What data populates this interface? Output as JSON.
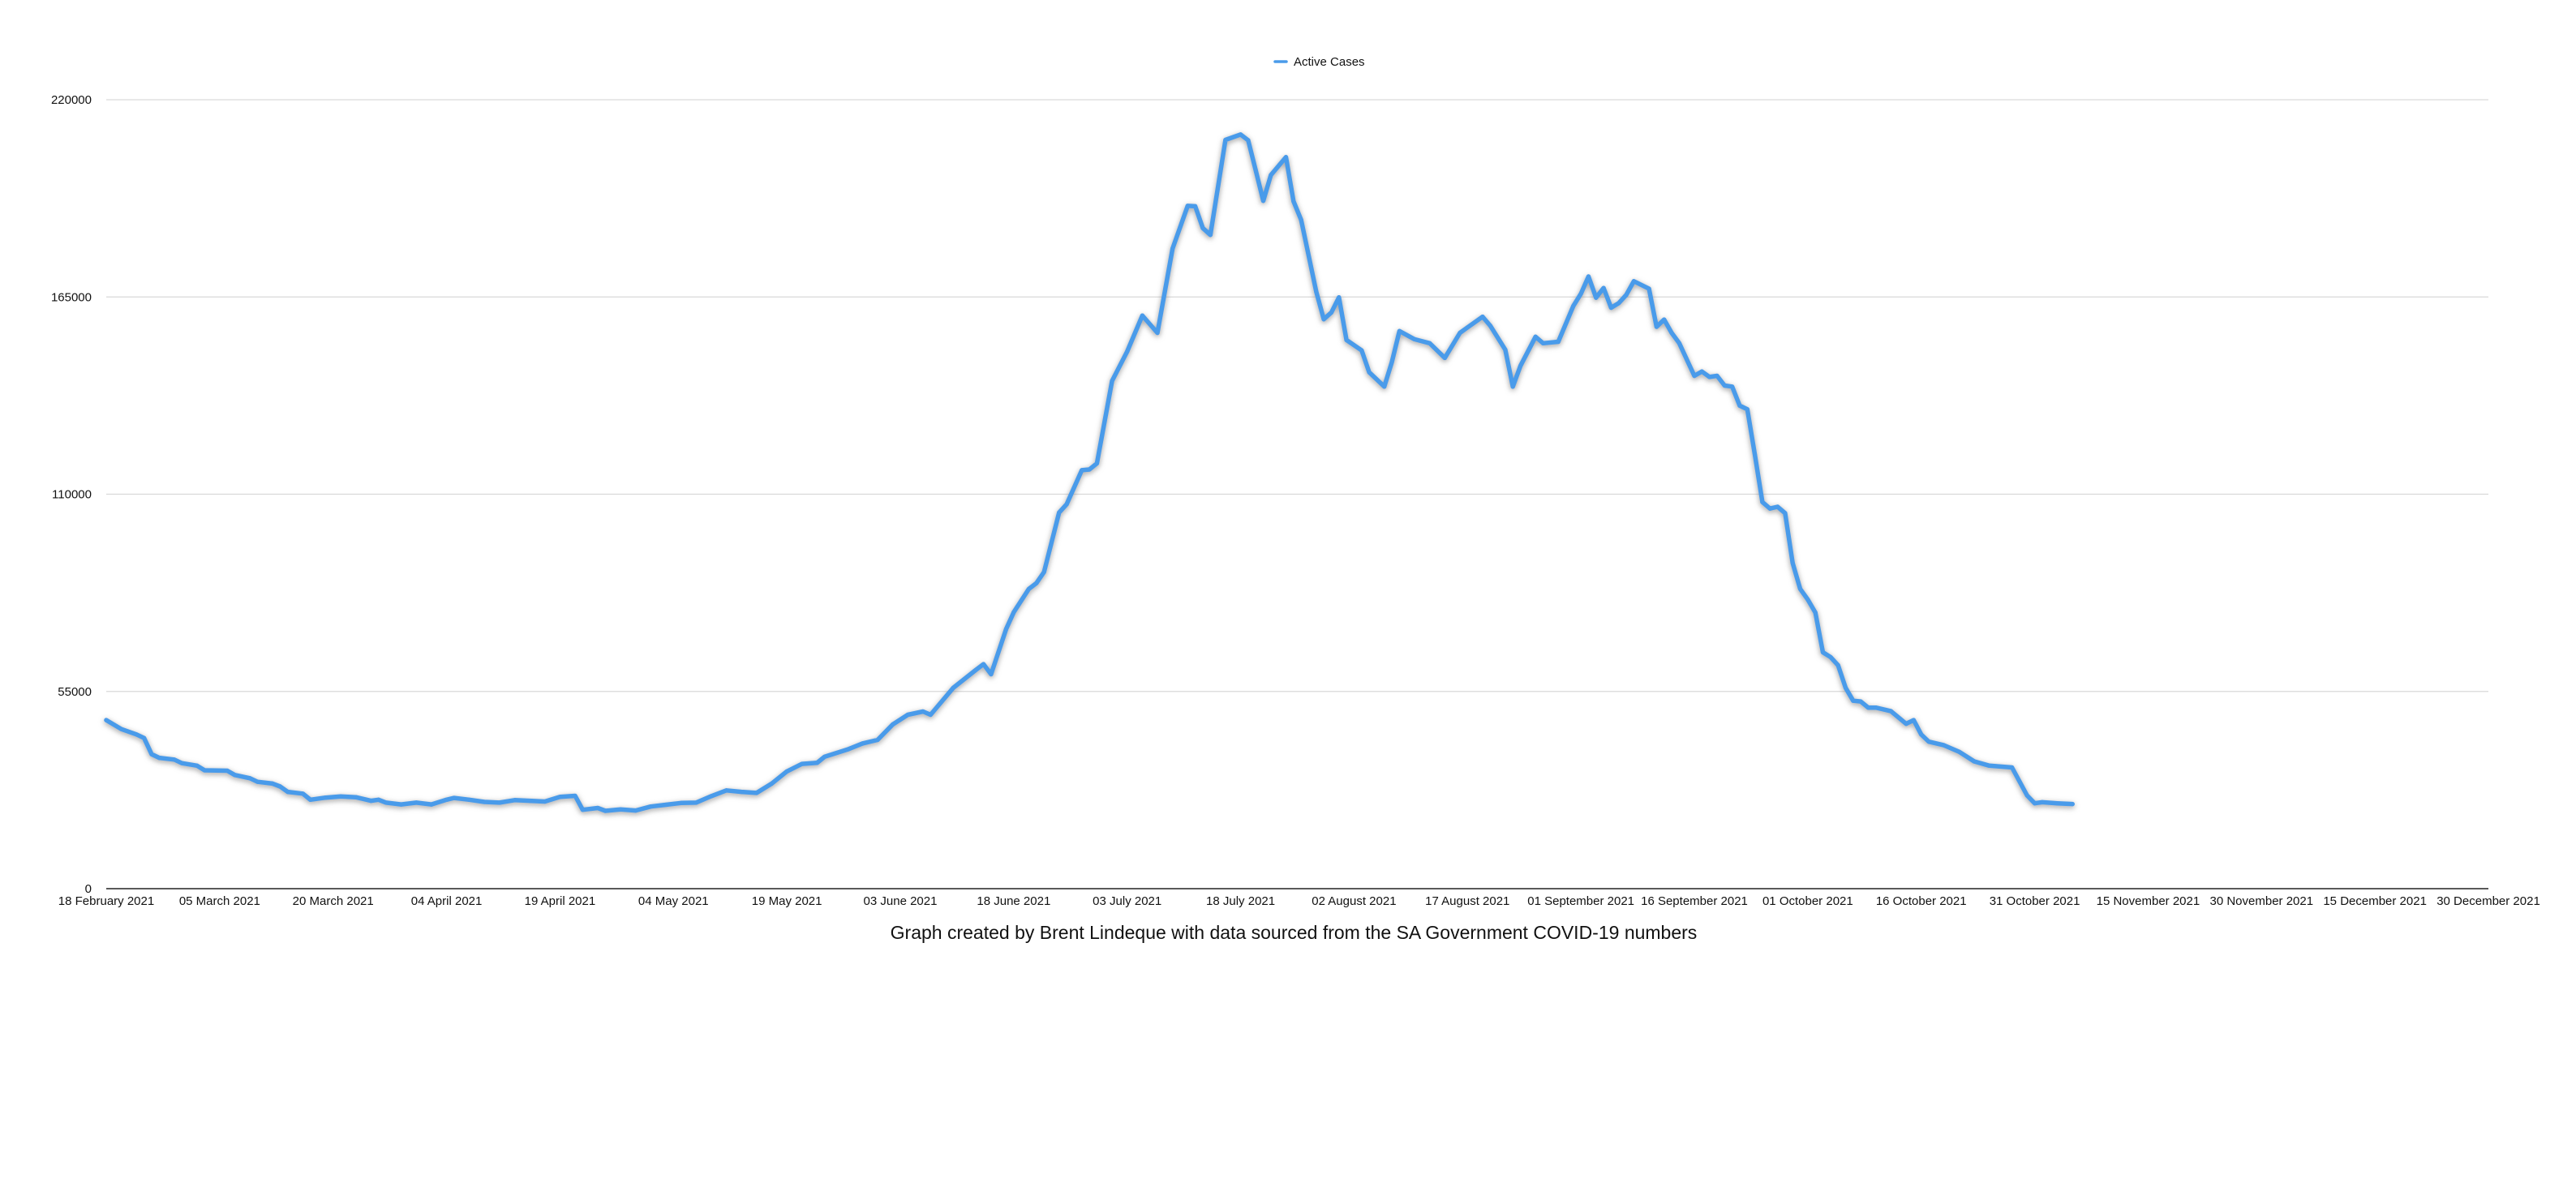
{
  "legend": {
    "label": "Active Cases",
    "placement": "top-center"
  },
  "caption": "Graph created by Brent Lindeque with data sourced from the SA Government COVID-19 numbers",
  "colors": {
    "series": "#4A9BEA",
    "shadow": "#9a9a9a",
    "grid": "#d9d9d9",
    "axis": "#222222"
  },
  "chart_data": {
    "type": "line",
    "title": "",
    "xlabel": "",
    "ylabel": "",
    "grid": true,
    "xlim": [
      "2021-02-18",
      "2021-12-30"
    ],
    "ylim": [
      0,
      220000
    ],
    "y_ticks": [
      0,
      55000,
      110000,
      165000,
      220000
    ],
    "x_ticks": [
      {
        "date": "2021-02-18",
        "label": "18 February 2021"
      },
      {
        "date": "2021-03-05",
        "label": "05 March 2021"
      },
      {
        "date": "2021-03-20",
        "label": "20 March 2021"
      },
      {
        "date": "2021-04-04",
        "label": "04 April 2021"
      },
      {
        "date": "2021-04-19",
        "label": "19 April 2021"
      },
      {
        "date": "2021-05-04",
        "label": "04 May 2021"
      },
      {
        "date": "2021-05-19",
        "label": "19 May 2021"
      },
      {
        "date": "2021-06-03",
        "label": "03 June 2021"
      },
      {
        "date": "2021-06-18",
        "label": "18 June 2021"
      },
      {
        "date": "2021-07-03",
        "label": "03 July 2021"
      },
      {
        "date": "2021-07-18",
        "label": "18 July 2021"
      },
      {
        "date": "2021-08-02",
        "label": "02 August 2021"
      },
      {
        "date": "2021-08-17",
        "label": "17 August 2021"
      },
      {
        "date": "2021-09-01",
        "label": "01 September 2021"
      },
      {
        "date": "2021-09-16",
        "label": "16 September 2021"
      },
      {
        "date": "2021-10-01",
        "label": "01 October 2021"
      },
      {
        "date": "2021-10-16",
        "label": "16 October 2021"
      },
      {
        "date": "2021-10-31",
        "label": "31 October 2021"
      },
      {
        "date": "2021-11-15",
        "label": "15 November 2021"
      },
      {
        "date": "2021-11-30",
        "label": "30 November 2021"
      },
      {
        "date": "2021-12-15",
        "label": "15 December 2021"
      },
      {
        "date": "2021-12-30",
        "label": "30 December 2021"
      }
    ],
    "series": [
      {
        "name": "Active Cases",
        "points": [
          [
            "2021-02-18",
            47000
          ],
          [
            "2021-02-20",
            44500
          ],
          [
            "2021-02-22",
            43000
          ],
          [
            "2021-02-23",
            42000
          ],
          [
            "2021-02-24",
            37500
          ],
          [
            "2021-02-25",
            36500
          ],
          [
            "2021-02-27",
            36000
          ],
          [
            "2021-02-28",
            35000
          ],
          [
            "2021-03-02",
            34300
          ],
          [
            "2021-03-03",
            33000
          ],
          [
            "2021-03-06",
            32900
          ],
          [
            "2021-03-07",
            31700
          ],
          [
            "2021-03-09",
            30800
          ],
          [
            "2021-03-10",
            29800
          ],
          [
            "2021-03-12",
            29300
          ],
          [
            "2021-03-13",
            28500
          ],
          [
            "2021-03-14",
            27000
          ],
          [
            "2021-03-16",
            26500
          ],
          [
            "2021-03-17",
            24800
          ],
          [
            "2021-03-19",
            25400
          ],
          [
            "2021-03-21",
            25700
          ],
          [
            "2021-03-23",
            25500
          ],
          [
            "2021-03-25",
            24500
          ],
          [
            "2021-03-26",
            24800
          ],
          [
            "2021-03-27",
            24000
          ],
          [
            "2021-03-29",
            23500
          ],
          [
            "2021-03-31",
            24000
          ],
          [
            "2021-04-02",
            23500
          ],
          [
            "2021-04-04",
            24800
          ],
          [
            "2021-04-05",
            25300
          ],
          [
            "2021-04-07",
            24800
          ],
          [
            "2021-04-09",
            24200
          ],
          [
            "2021-04-11",
            24000
          ],
          [
            "2021-04-13",
            24700
          ],
          [
            "2021-04-15",
            24500
          ],
          [
            "2021-04-17",
            24300
          ],
          [
            "2021-04-19",
            25600
          ],
          [
            "2021-04-21",
            25900
          ],
          [
            "2021-04-22",
            22000
          ],
          [
            "2021-04-24",
            22500
          ],
          [
            "2021-04-25",
            21700
          ],
          [
            "2021-04-27",
            22100
          ],
          [
            "2021-04-29",
            21800
          ],
          [
            "2021-05-01",
            22900
          ],
          [
            "2021-05-03",
            23400
          ],
          [
            "2021-05-05",
            23900
          ],
          [
            "2021-05-07",
            24000
          ],
          [
            "2021-05-09",
            25800
          ],
          [
            "2021-05-11",
            27400
          ],
          [
            "2021-05-13",
            27000
          ],
          [
            "2021-05-15",
            26700
          ],
          [
            "2021-05-17",
            29300
          ],
          [
            "2021-05-19",
            32700
          ],
          [
            "2021-05-21",
            34800
          ],
          [
            "2021-05-23",
            35100
          ],
          [
            "2021-05-24",
            36800
          ],
          [
            "2021-05-27",
            38800
          ],
          [
            "2021-05-29",
            40500
          ],
          [
            "2021-05-31",
            41500
          ],
          [
            "2021-06-02",
            45800
          ],
          [
            "2021-06-04",
            48500
          ],
          [
            "2021-06-06",
            49400
          ],
          [
            "2021-06-07",
            48500
          ],
          [
            "2021-06-10",
            56000
          ],
          [
            "2021-06-13",
            61000
          ],
          [
            "2021-06-14",
            62600
          ],
          [
            "2021-06-15",
            59800
          ],
          [
            "2021-06-17",
            72400
          ],
          [
            "2021-06-18",
            77100
          ],
          [
            "2021-06-20",
            83600
          ],
          [
            "2021-06-21",
            85200
          ],
          [
            "2021-06-22",
            88300
          ],
          [
            "2021-06-24",
            104900
          ],
          [
            "2021-06-25",
            107200
          ],
          [
            "2021-06-27",
            116700
          ],
          [
            "2021-06-28",
            116900
          ],
          [
            "2021-06-29",
            118600
          ],
          [
            "2021-07-01",
            141600
          ],
          [
            "2021-07-03",
            149800
          ],
          [
            "2021-07-05",
            159800
          ],
          [
            "2021-07-07",
            155000
          ],
          [
            "2021-07-09",
            178500
          ],
          [
            "2021-07-11",
            190400
          ],
          [
            "2021-07-12",
            190300
          ],
          [
            "2021-07-13",
            184200
          ],
          [
            "2021-07-14",
            182300
          ],
          [
            "2021-07-16",
            208800
          ],
          [
            "2021-07-18",
            210300
          ],
          [
            "2021-07-19",
            208700
          ],
          [
            "2021-07-20",
            200300
          ],
          [
            "2021-07-21",
            191800
          ],
          [
            "2021-07-22",
            199000
          ],
          [
            "2021-07-24",
            204000
          ],
          [
            "2021-07-25",
            191700
          ],
          [
            "2021-07-26",
            186500
          ],
          [
            "2021-07-28",
            166500
          ],
          [
            "2021-07-29",
            158800
          ],
          [
            "2021-07-30",
            160700
          ],
          [
            "2021-07-31",
            164900
          ],
          [
            "2021-08-01",
            153000
          ],
          [
            "2021-08-03",
            150100
          ],
          [
            "2021-08-04",
            144000
          ],
          [
            "2021-08-06",
            140000
          ],
          [
            "2021-08-07",
            146800
          ],
          [
            "2021-08-08",
            155500
          ],
          [
            "2021-08-10",
            153200
          ],
          [
            "2021-08-12",
            152100
          ],
          [
            "2021-08-14",
            148000
          ],
          [
            "2021-08-16",
            155000
          ],
          [
            "2021-08-17",
            156500
          ],
          [
            "2021-08-19",
            159500
          ],
          [
            "2021-08-20",
            157000
          ],
          [
            "2021-08-22",
            150300
          ],
          [
            "2021-08-23",
            140000
          ],
          [
            "2021-08-24",
            145800
          ],
          [
            "2021-08-26",
            153900
          ],
          [
            "2021-08-27",
            152100
          ],
          [
            "2021-08-29",
            152500
          ],
          [
            "2021-08-31",
            162500
          ],
          [
            "2021-09-01",
            165900
          ],
          [
            "2021-09-02",
            170700
          ],
          [
            "2021-09-03",
            164800
          ],
          [
            "2021-09-04",
            167500
          ],
          [
            "2021-09-05",
            162000
          ],
          [
            "2021-09-06",
            163300
          ],
          [
            "2021-09-07",
            165600
          ],
          [
            "2021-09-08",
            169400
          ],
          [
            "2021-09-10",
            167300
          ],
          [
            "2021-09-11",
            156700
          ],
          [
            "2021-09-12",
            158700
          ],
          [
            "2021-09-13",
            155000
          ],
          [
            "2021-09-14",
            152100
          ],
          [
            "2021-09-16",
            143000
          ],
          [
            "2021-09-17",
            144200
          ],
          [
            "2021-09-18",
            142700
          ],
          [
            "2021-09-19",
            143000
          ],
          [
            "2021-09-20",
            140300
          ],
          [
            "2021-09-21",
            140000
          ],
          [
            "2021-09-22",
            134700
          ],
          [
            "2021-09-23",
            133700
          ],
          [
            "2021-09-24",
            121000
          ],
          [
            "2021-09-25",
            107800
          ],
          [
            "2021-09-26",
            106000
          ],
          [
            "2021-09-27",
            106500
          ],
          [
            "2021-09-28",
            104700
          ],
          [
            "2021-09-29",
            90800
          ],
          [
            "2021-09-30",
            83600
          ],
          [
            "2021-10-01",
            80600
          ],
          [
            "2021-10-02",
            77000
          ],
          [
            "2021-10-03",
            65900
          ],
          [
            "2021-10-04",
            64600
          ],
          [
            "2021-10-05",
            62300
          ],
          [
            "2021-10-06",
            56000
          ],
          [
            "2021-10-07",
            52400
          ],
          [
            "2021-10-08",
            52200
          ],
          [
            "2021-10-09",
            50500
          ],
          [
            "2021-10-10",
            50500
          ],
          [
            "2021-10-12",
            49500
          ],
          [
            "2021-10-14",
            46000
          ],
          [
            "2021-10-15",
            47000
          ],
          [
            "2021-10-16",
            43000
          ],
          [
            "2021-10-17",
            41000
          ],
          [
            "2021-10-19",
            40000
          ],
          [
            "2021-10-21",
            38200
          ],
          [
            "2021-10-23",
            35500
          ],
          [
            "2021-10-25",
            34300
          ],
          [
            "2021-10-28",
            33800
          ],
          [
            "2021-10-30",
            26000
          ],
          [
            "2021-10-31",
            23800
          ],
          [
            "2021-11-01",
            24100
          ],
          [
            "2021-11-03",
            23800
          ],
          [
            "2021-11-05",
            23600
          ]
        ]
      }
    ]
  }
}
